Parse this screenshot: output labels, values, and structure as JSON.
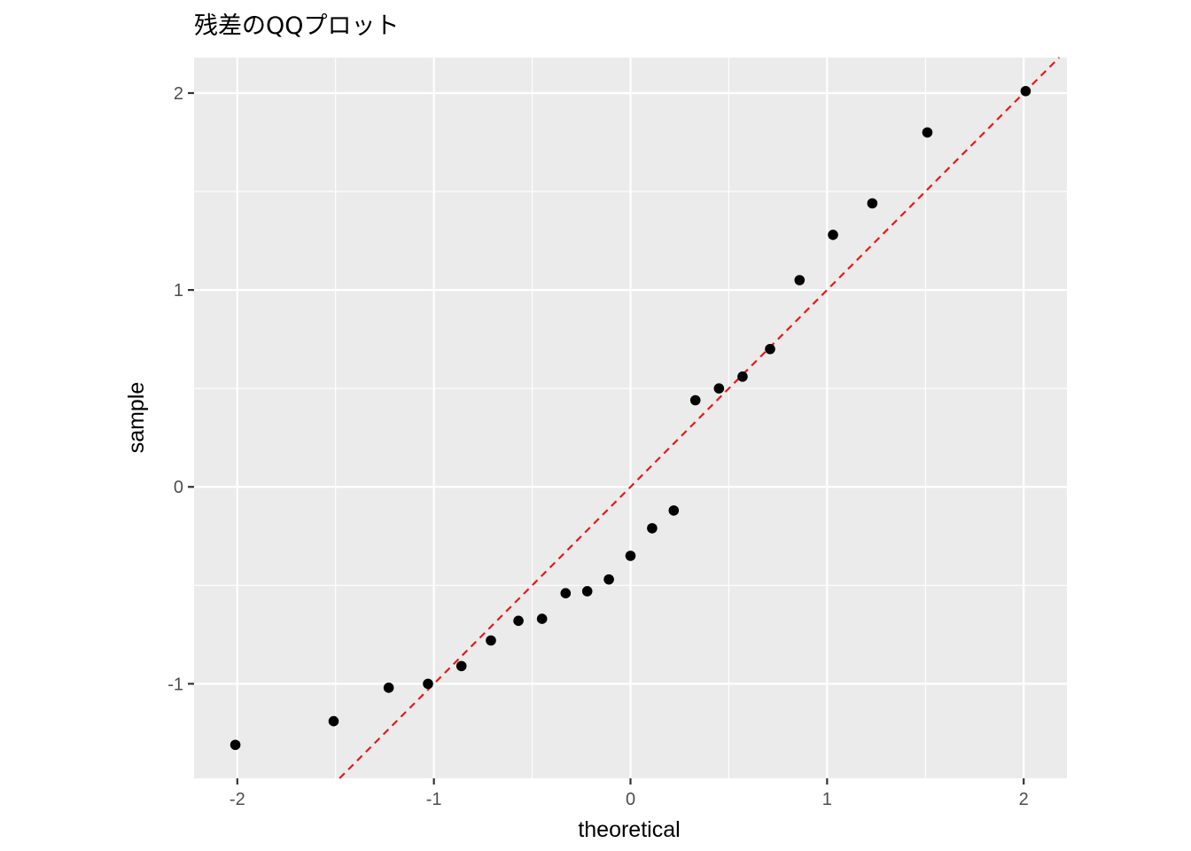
{
  "chart_data": {
    "type": "scatter",
    "title": "残差のQQプロット",
    "xlabel": "theoretical",
    "ylabel": "sample",
    "xlim": [
      -2.22,
      2.22
    ],
    "ylim": [
      -1.48,
      2.18
    ],
    "x_ticks": [
      -2,
      -1,
      0,
      1,
      2
    ],
    "y_ticks": [
      -1,
      0,
      1,
      2
    ],
    "x_tick_labels": [
      "-2",
      "-1",
      "0",
      "1",
      "2"
    ],
    "y_tick_labels": [
      "-1",
      "0",
      "1",
      "2"
    ],
    "grid": true,
    "reference_line": {
      "slope": 1,
      "intercept": 0,
      "style": "dashed",
      "color": "#e41a1c"
    },
    "point_color": "#000000",
    "panel_color": "#ebebeb",
    "points": [
      {
        "x": -2.01,
        "y": -1.31
      },
      {
        "x": -1.51,
        "y": -1.19
      },
      {
        "x": -1.23,
        "y": -1.02
      },
      {
        "x": -1.03,
        "y": -1.0
      },
      {
        "x": -0.86,
        "y": -0.91
      },
      {
        "x": -0.71,
        "y": -0.78
      },
      {
        "x": -0.57,
        "y": -0.68
      },
      {
        "x": -0.45,
        "y": -0.67
      },
      {
        "x": -0.33,
        "y": -0.54
      },
      {
        "x": -0.22,
        "y": -0.53
      },
      {
        "x": -0.11,
        "y": -0.47
      },
      {
        "x": 0.0,
        "y": -0.35
      },
      {
        "x": 0.11,
        "y": -0.21
      },
      {
        "x": 0.22,
        "y": -0.12
      },
      {
        "x": 0.33,
        "y": 0.44
      },
      {
        "x": 0.45,
        "y": 0.5
      },
      {
        "x": 0.57,
        "y": 0.56
      },
      {
        "x": 0.71,
        "y": 0.7
      },
      {
        "x": 0.86,
        "y": 1.05
      },
      {
        "x": 1.03,
        "y": 1.28
      },
      {
        "x": 1.23,
        "y": 1.44
      },
      {
        "x": 1.51,
        "y": 1.8
      },
      {
        "x": 2.01,
        "y": 2.01
      }
    ]
  }
}
